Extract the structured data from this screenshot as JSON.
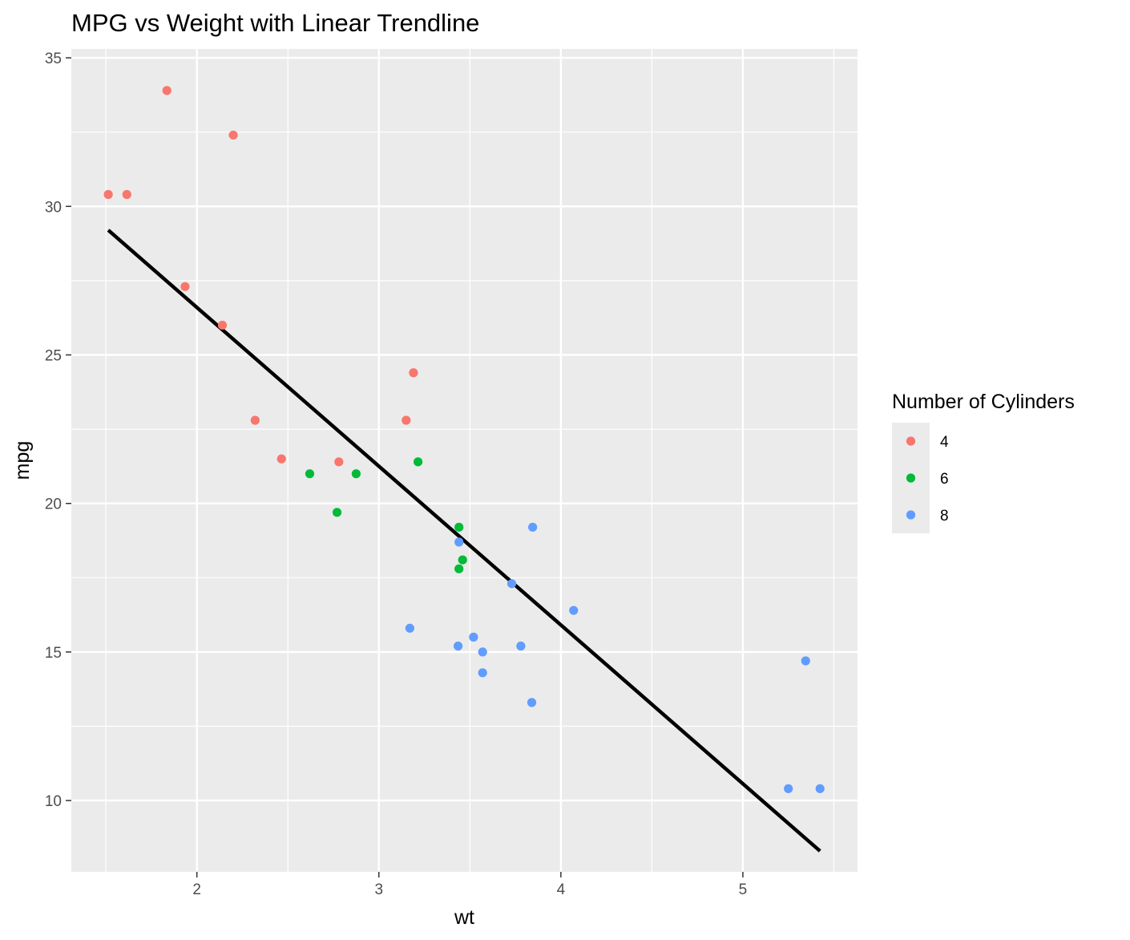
{
  "chart_data": {
    "type": "scatter",
    "title": "MPG vs Weight with Linear Trendline",
    "xlabel": "wt",
    "ylabel": "mpg",
    "xlim": [
      1.31,
      5.63
    ],
    "ylim": [
      7.6,
      35.3
    ],
    "x_ticks": [
      2,
      3,
      4,
      5
    ],
    "y_ticks": [
      10,
      15,
      20,
      25,
      30,
      35
    ],
    "x_minor": [
      1.5,
      2.5,
      3.5,
      4.5,
      5.5
    ],
    "y_minor": [
      12.5,
      17.5,
      22.5,
      27.5,
      32.5
    ],
    "grid": true,
    "legend": {
      "title": "Number of Cylinders",
      "placement": "right",
      "entries": [
        {
          "label": "4",
          "color": "#F8766D"
        },
        {
          "label": "6",
          "color": "#00BA38"
        },
        {
          "label": "8",
          "color": "#619CFF"
        }
      ]
    },
    "series": [
      {
        "name": "4",
        "color": "#F8766D",
        "points": [
          [
            2.32,
            22.8
          ],
          [
            3.19,
            24.4
          ],
          [
            3.15,
            22.8
          ],
          [
            2.2,
            32.4
          ],
          [
            1.615,
            30.4
          ],
          [
            1.835,
            33.9
          ],
          [
            2.465,
            21.5
          ],
          [
            1.935,
            27.3
          ],
          [
            2.14,
            26.0
          ],
          [
            1.513,
            30.4
          ],
          [
            2.78,
            21.4
          ]
        ]
      },
      {
        "name": "6",
        "color": "#00BA38",
        "points": [
          [
            2.62,
            21.0
          ],
          [
            2.875,
            21.0
          ],
          [
            3.215,
            21.4
          ],
          [
            3.46,
            18.1
          ],
          [
            3.44,
            19.2
          ],
          [
            3.44,
            17.8
          ],
          [
            2.77,
            19.7
          ]
        ]
      },
      {
        "name": "8",
        "color": "#619CFF",
        "points": [
          [
            3.44,
            18.7
          ],
          [
            3.57,
            14.3
          ],
          [
            4.07,
            16.4
          ],
          [
            3.73,
            17.3
          ],
          [
            3.78,
            15.2
          ],
          [
            5.25,
            10.4
          ],
          [
            5.424,
            10.4
          ],
          [
            5.345,
            14.7
          ],
          [
            3.52,
            15.5
          ],
          [
            3.435,
            15.2
          ],
          [
            3.84,
            13.3
          ],
          [
            3.845,
            19.2
          ],
          [
            3.17,
            15.8
          ],
          [
            3.57,
            15.0
          ]
        ]
      }
    ],
    "trendline": {
      "type": "linear",
      "color": "#000000",
      "intercept": 37.285,
      "slope": -5.344,
      "x_range": [
        1.513,
        5.424
      ]
    }
  }
}
